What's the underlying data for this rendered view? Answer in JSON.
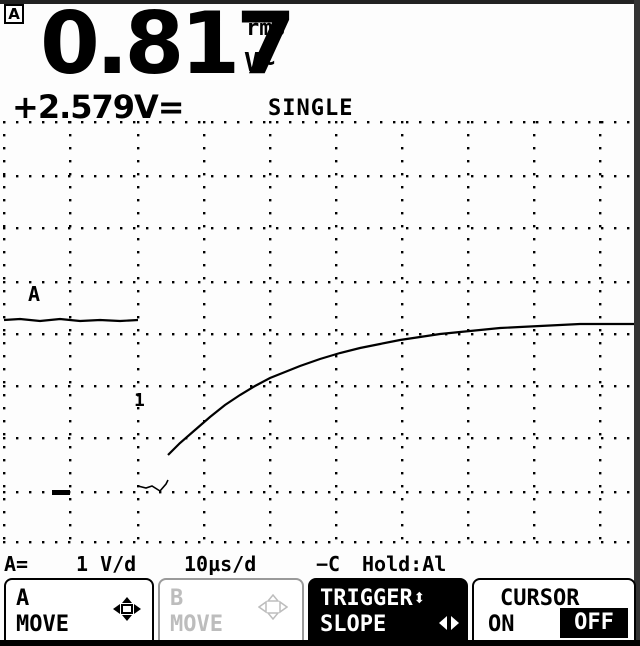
{
  "channel_badge": "A",
  "main_reading": {
    "value": "0.817",
    "unit_top": "rms",
    "unit_bottom": "V~"
  },
  "secondary_reading": "+2.579V=",
  "mode": "SINGLE",
  "trace_label": "A",
  "trigger_marker": "1",
  "status": {
    "channel_scale": "A=",
    "volts_per_div": "1 V/d",
    "time_per_div": "10µs/d",
    "trigger_symbol": "−C",
    "hold": "Hold:Al"
  },
  "softkeys": [
    {
      "line1": "A",
      "line2": "MOVE",
      "icon": "⬍⬌",
      "enabled": true
    },
    {
      "line1": "B",
      "line2": "MOVE",
      "icon": "⬍⬌",
      "enabled": false
    },
    {
      "line1": "TRIGGER⬍",
      "line2": "SLOPE",
      "icon": "◀▶",
      "selected": true
    },
    {
      "line1": "CURSOR",
      "line2": "ON",
      "line2b": "OFF"
    }
  ],
  "colors": {
    "background": "#fdfdfd",
    "ink": "#000000",
    "disabled": "#bdbdbd"
  }
}
